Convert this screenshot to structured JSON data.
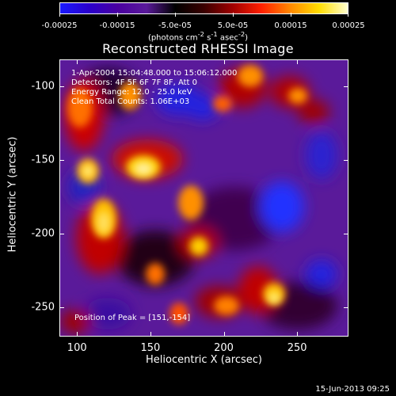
{
  "colorbar": {
    "tick_labels": [
      "-0.00025",
      "-0.00015",
      "-5.0e-05",
      "5.0e-05",
      "0.00015",
      "0.00025"
    ],
    "units_html": "(photons cm<sup>-2</sup> s<sup>-1</sup> asec<sup>-2</sup>)",
    "units_text": "(photons cm-2 s-1 asec-2)",
    "colors": [
      "#1a1aff",
      "#2a00cc",
      "#4a00a0",
      "#5a1a9a",
      "#000000",
      "#3a0000",
      "#a00000",
      "#ff2000",
      "#ff8800",
      "#ffdd00",
      "#ffffd0"
    ]
  },
  "title": "Reconstructed RHESSI Image",
  "annotations": {
    "time_range": "1-Apr-2004 15:04:48.000 to 15:06:12.000",
    "detectors": "Detectors: 4F 5F 6F 7F 8F, Att 0",
    "energy": "Energy Range: 12.0 - 25.0 keV",
    "method": "Clean    Total Counts: 1.06E+03",
    "peak": "Position of Peak = [151,-154]"
  },
  "axes": {
    "x": {
      "label": "Heliocentric X (arcsec)",
      "ticks": [
        100,
        150,
        200,
        250
      ],
      "range": [
        88,
        285
      ]
    },
    "y": {
      "label": "Heliocentric Y (arcsec)",
      "ticks": [
        -100,
        -150,
        -200,
        -250
      ],
      "range": [
        -270,
        -82
      ]
    }
  },
  "footer_date": "15-Jun-2013 09:25"
}
